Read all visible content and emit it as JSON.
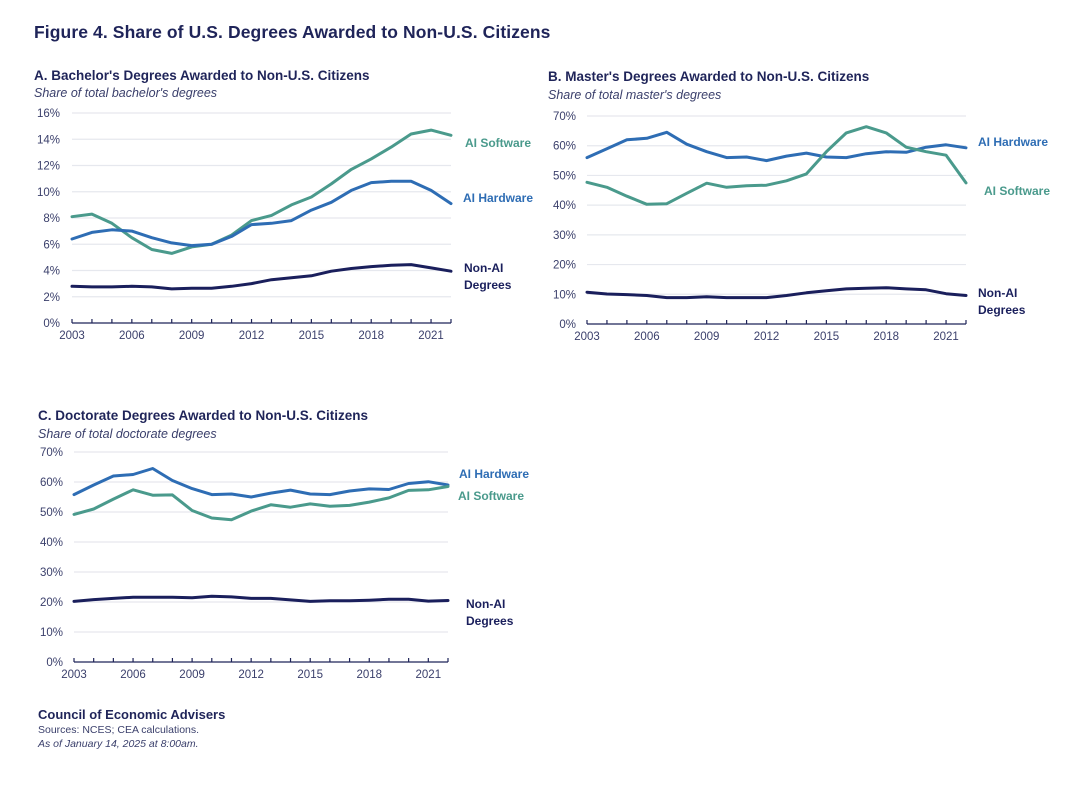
{
  "figure_title": "Figure 4. Share of U.S. Degrees Awarded to Non-U.S. Citizens",
  "colors": {
    "ai_software": "#4a9a8c",
    "ai_hardware": "#2e6db4",
    "non_ai": "#1a1f5c",
    "gridline": "#e6e8ee",
    "axis": "#1f2459"
  },
  "footer": {
    "org": "Council of Economic Advisers",
    "sources": "Sources: NCES; CEA calculations.",
    "as_of": "As of January 14, 2025 at 8:00am."
  },
  "chart_data": [
    {
      "id": "A",
      "type": "line",
      "title": "A. Bachelor's Degrees Awarded to Non-U.S. Citizens",
      "subtitle": "Share of total bachelor's degrees",
      "xlabel": "",
      "ylabel": "",
      "x": [
        2003,
        2004,
        2005,
        2006,
        2007,
        2008,
        2009,
        2010,
        2011,
        2012,
        2013,
        2014,
        2015,
        2016,
        2017,
        2018,
        2019,
        2020,
        2021,
        2022
      ],
      "xlim": [
        2003,
        2022
      ],
      "x_tick_labels": [
        "2003",
        "2006",
        "2009",
        "2012",
        "2015",
        "2018",
        "2021"
      ],
      "ylim": [
        0,
        16
      ],
      "y_ticks": [
        0,
        2,
        4,
        6,
        8,
        10,
        12,
        14,
        16
      ],
      "y_tick_labels": [
        "0%",
        "2%",
        "4%",
        "6%",
        "8%",
        "10%",
        "12%",
        "14%",
        "16%"
      ],
      "grid": true,
      "legend": "direct-labels-right",
      "series": [
        {
          "key": "ai_software",
          "name": "AI Software",
          "label_lines": [
            "AI Software"
          ],
          "values": [
            8.1,
            8.3,
            7.6,
            6.5,
            5.6,
            5.3,
            5.8,
            6.0,
            6.7,
            7.8,
            8.2,
            9.0,
            9.6,
            10.6,
            11.7,
            12.5,
            13.4,
            14.4,
            14.7,
            14.3
          ]
        },
        {
          "key": "ai_hardware",
          "name": "AI Hardware",
          "label_lines": [
            "AI Hardware"
          ],
          "values": [
            6.4,
            6.9,
            7.1,
            7.0,
            6.5,
            6.1,
            5.9,
            6.0,
            6.6,
            7.5,
            7.6,
            7.8,
            8.6,
            9.2,
            10.1,
            10.7,
            10.8,
            10.8,
            10.1,
            9.1
          ]
        },
        {
          "key": "non_ai",
          "name": "Non-AI Degrees",
          "label_lines": [
            "Non-AI",
            "Degrees"
          ],
          "values": [
            2.8,
            2.75,
            2.75,
            2.8,
            2.75,
            2.6,
            2.65,
            2.65,
            2.8,
            3.0,
            3.3,
            3.45,
            3.6,
            3.95,
            4.15,
            4.3,
            4.4,
            4.45,
            4.2,
            3.95
          ]
        }
      ]
    },
    {
      "id": "B",
      "type": "line",
      "title": "B. Master's Degrees Awarded to Non-U.S. Citizens",
      "subtitle": "Share of total master's degrees",
      "xlabel": "",
      "ylabel": "",
      "x": [
        2003,
        2004,
        2005,
        2006,
        2007,
        2008,
        2009,
        2010,
        2011,
        2012,
        2013,
        2014,
        2015,
        2016,
        2017,
        2018,
        2019,
        2020,
        2021,
        2022
      ],
      "xlim": [
        2003,
        2022
      ],
      "x_tick_labels": [
        "2003",
        "2006",
        "2009",
        "2012",
        "2015",
        "2018",
        "2021"
      ],
      "ylim": [
        0,
        70
      ],
      "y_ticks": [
        0,
        10,
        20,
        30,
        40,
        50,
        60,
        70
      ],
      "y_tick_labels": [
        "0%",
        "10%",
        "20%",
        "30%",
        "40%",
        "50%",
        "60%",
        "70%"
      ],
      "grid": true,
      "legend": "direct-labels-right",
      "series": [
        {
          "key": "ai_hardware",
          "name": "AI Hardware",
          "label_lines": [
            "AI Hardware"
          ],
          "values": [
            56,
            59,
            62,
            62.5,
            64.5,
            60.5,
            58,
            56,
            56.2,
            55,
            56.5,
            57.5,
            56.2,
            56,
            57.3,
            58,
            57.8,
            59.5,
            60.3,
            59.3
          ]
        },
        {
          "key": "ai_software",
          "name": "AI Software",
          "label_lines": [
            "AI Software"
          ],
          "values": [
            47.7,
            46,
            43,
            40.3,
            40.5,
            44,
            47.4,
            46,
            46.5,
            46.7,
            48.2,
            50.5,
            58,
            64.3,
            66.4,
            64.3,
            59.5,
            58,
            56.8,
            47.5
          ]
        },
        {
          "key": "non_ai",
          "name": "Non-AI Degrees",
          "label_lines": [
            "Non-AI",
            "Degrees"
          ],
          "values": [
            10.7,
            10.1,
            9.9,
            9.6,
            8.9,
            8.9,
            9.2,
            8.9,
            8.9,
            8.9,
            9.6,
            10.5,
            11.2,
            11.8,
            12.0,
            12.2,
            11.8,
            11.5,
            10.2,
            9.6
          ]
        }
      ]
    },
    {
      "id": "C",
      "type": "line",
      "title": "C. Doctorate Degrees Awarded to Non-U.S. Citizens",
      "subtitle": "Share of total doctorate degrees",
      "xlabel": "",
      "ylabel": "",
      "x": [
        2003,
        2004,
        2005,
        2006,
        2007,
        2008,
        2009,
        2010,
        2011,
        2012,
        2013,
        2014,
        2015,
        2016,
        2017,
        2018,
        2019,
        2020,
        2021,
        2022
      ],
      "xlim": [
        2003,
        2022
      ],
      "x_tick_labels": [
        "2003",
        "2006",
        "2009",
        "2012",
        "2015",
        "2018",
        "2021"
      ],
      "ylim": [
        0,
        70
      ],
      "y_ticks": [
        0,
        10,
        20,
        30,
        40,
        50,
        60,
        70
      ],
      "y_tick_labels": [
        "0%",
        "10%",
        "20%",
        "30%",
        "40%",
        "50%",
        "60%",
        "70%"
      ],
      "grid": true,
      "legend": "direct-labels-right",
      "series": [
        {
          "key": "ai_hardware",
          "name": "AI Hardware",
          "label_lines": [
            "AI Hardware"
          ],
          "values": [
            55.8,
            59,
            62,
            62.5,
            64.5,
            60.5,
            57.8,
            55.8,
            56,
            55,
            56.3,
            57.3,
            56,
            55.8,
            57,
            57.7,
            57.5,
            59.5,
            60.1,
            59
          ]
        },
        {
          "key": "ai_software",
          "name": "AI Software",
          "label_lines": [
            "AI Software"
          ],
          "values": [
            49.2,
            51,
            54.3,
            57.4,
            55.6,
            55.7,
            50.5,
            48,
            47.4,
            50.3,
            52.4,
            51.6,
            52.7,
            51.9,
            52.2,
            53.3,
            54.7,
            57.2,
            57.4,
            58.5
          ]
        },
        {
          "key": "non_ai",
          "name": "Non-AI Degrees",
          "label_lines": [
            "Non-AI",
            "Degrees"
          ],
          "values": [
            20.2,
            20.8,
            21.2,
            21.6,
            21.6,
            21.6,
            21.4,
            21.9,
            21.7,
            21.2,
            21.2,
            20.7,
            20.2,
            20.4,
            20.4,
            20.6,
            20.9,
            20.9,
            20.3,
            20.5
          ]
        }
      ]
    }
  ]
}
